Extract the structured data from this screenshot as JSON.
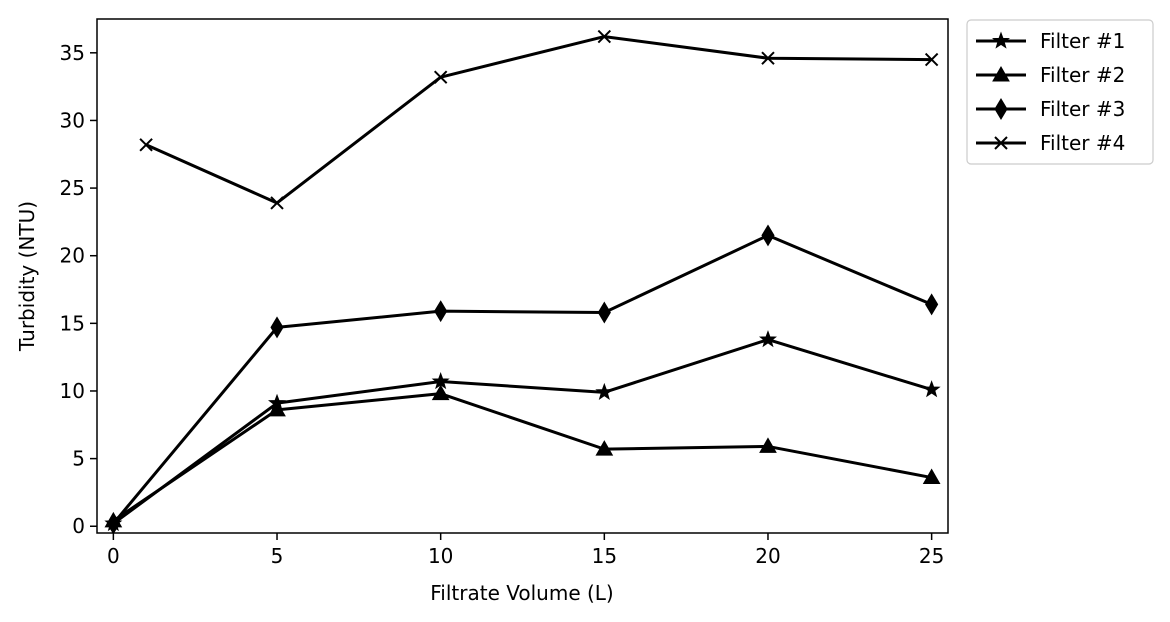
{
  "chart_data": {
    "type": "line",
    "title": "",
    "xlabel": "Filtrate Volume (L)",
    "ylabel": "Turbidity (NTU)",
    "xlim": [
      -0.5,
      25.5
    ],
    "ylim": [
      -0.5,
      37.5
    ],
    "xticks": [
      0,
      5,
      10,
      15,
      20,
      25
    ],
    "yticks": [
      0,
      5,
      10,
      15,
      20,
      25,
      30,
      35
    ],
    "grid": false,
    "legend_position": "outside-top-right",
    "line_color": "#000000",
    "series": [
      {
        "name": "Filter #1",
        "marker": "star",
        "x": [
          0,
          5,
          10,
          15,
          20,
          25
        ],
        "y": [
          0.2,
          9.1,
          10.7,
          9.9,
          13.8,
          10.1
        ]
      },
      {
        "name": "Filter #2",
        "marker": "triangle",
        "x": [
          0,
          5,
          10,
          15,
          20,
          25
        ],
        "y": [
          0.4,
          8.6,
          9.8,
          5.7,
          5.9,
          3.6
        ]
      },
      {
        "name": "Filter #3",
        "marker": "diamond",
        "x": [
          0,
          5,
          10,
          15,
          20,
          25
        ],
        "y": [
          0.2,
          14.7,
          15.9,
          15.8,
          21.5,
          16.4
        ]
      },
      {
        "name": "Filter #4",
        "marker": "x",
        "x": [
          1,
          5,
          10,
          15,
          20,
          25
        ],
        "y": [
          28.2,
          23.9,
          33.2,
          36.2,
          34.6,
          34.5
        ]
      }
    ]
  }
}
